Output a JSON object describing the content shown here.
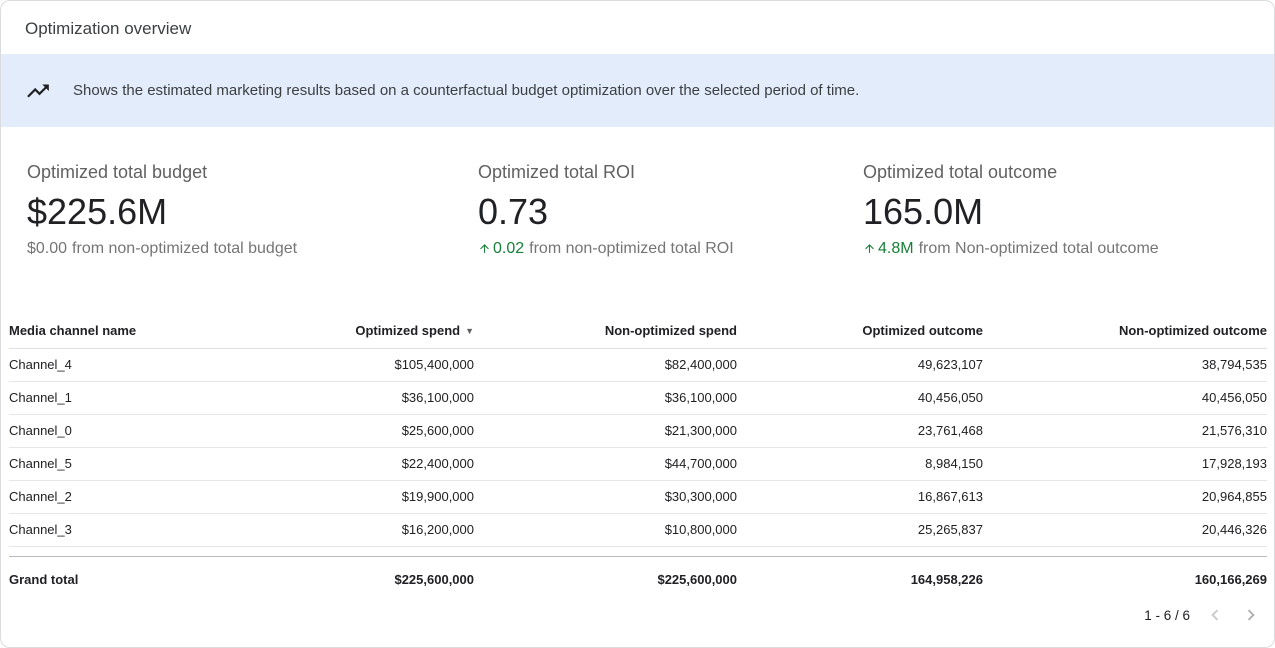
{
  "header": {
    "title": "Optimization overview"
  },
  "banner": {
    "icon": "trending-up-icon",
    "text": "Shows the estimated marketing results based on a counterfactual budget optimization over the selected period of time."
  },
  "kpis": [
    {
      "label": "Optimized total budget",
      "value": "$225.6M",
      "delta": {
        "amount": "$0.00",
        "text": "from non-optimized total budget",
        "positive": false
      }
    },
    {
      "label": "Optimized total ROI",
      "value": "0.73",
      "delta": {
        "amount": "0.02",
        "text": "from non-optimized total ROI",
        "positive": true
      }
    },
    {
      "label": "Optimized total outcome",
      "value": "165.0M",
      "delta": {
        "amount": "4.8M",
        "text": "from Non-optimized total outcome",
        "positive": true
      }
    }
  ],
  "table": {
    "columns": [
      "Media channel name",
      "Optimized spend",
      "Non-optimized spend",
      "Optimized outcome",
      "Non-optimized outcome"
    ],
    "sort": {
      "column_index": 1,
      "direction": "desc",
      "icon": "sort-desc-icon"
    },
    "rows": [
      [
        "Channel_4",
        "$105,400,000",
        "$82,400,000",
        "49,623,107",
        "38,794,535"
      ],
      [
        "Channel_1",
        "$36,100,000",
        "$36,100,000",
        "40,456,050",
        "40,456,050"
      ],
      [
        "Channel_0",
        "$25,600,000",
        "$21,300,000",
        "23,761,468",
        "21,576,310"
      ],
      [
        "Channel_5",
        "$22,400,000",
        "$44,700,000",
        "8,984,150",
        "17,928,193"
      ],
      [
        "Channel_2",
        "$19,900,000",
        "$30,300,000",
        "16,867,613",
        "20,964,855"
      ],
      [
        "Channel_3",
        "$16,200,000",
        "$10,800,000",
        "25,265,837",
        "20,446,326"
      ]
    ],
    "grand_total": [
      "Grand total",
      "$225,600,000",
      "$225,600,000",
      "164,958,226",
      "160,166,269"
    ]
  },
  "pagination": {
    "label": "1 - 6 / 6",
    "prev_icon": "chevron-left-icon",
    "next_icon": "chevron-right-icon"
  },
  "colors": {
    "positive_green": "#188038",
    "banner_background": "#e3ecfa"
  }
}
